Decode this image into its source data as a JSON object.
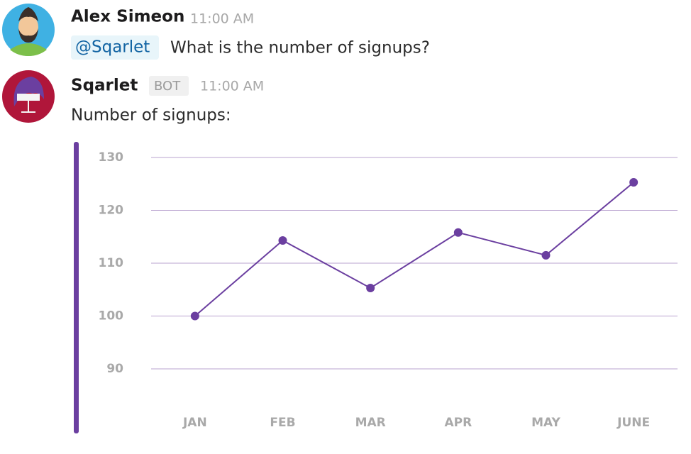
{
  "messages": [
    {
      "author": "Alex Simeon",
      "time": "11:00 AM",
      "mention": "@Sqarlet",
      "text": "What is the number of signups?"
    },
    {
      "author": "Sqarlet",
      "badge": "BOT",
      "time": "11:00 AM",
      "text": "Number of signups:"
    }
  ],
  "chart_data": {
    "type": "line",
    "categories": [
      "JAN",
      "FEB",
      "MAR",
      "APR",
      "MAY",
      "JUNE"
    ],
    "values": [
      100,
      114.3,
      105.3,
      115.8,
      111.5,
      125.3
    ],
    "color": "#6b3fa0",
    "grid_color": "#b9a3cf",
    "ylim": [
      90,
      130
    ],
    "yticks": [
      90,
      100,
      110,
      120,
      130
    ],
    "grid": true
  }
}
